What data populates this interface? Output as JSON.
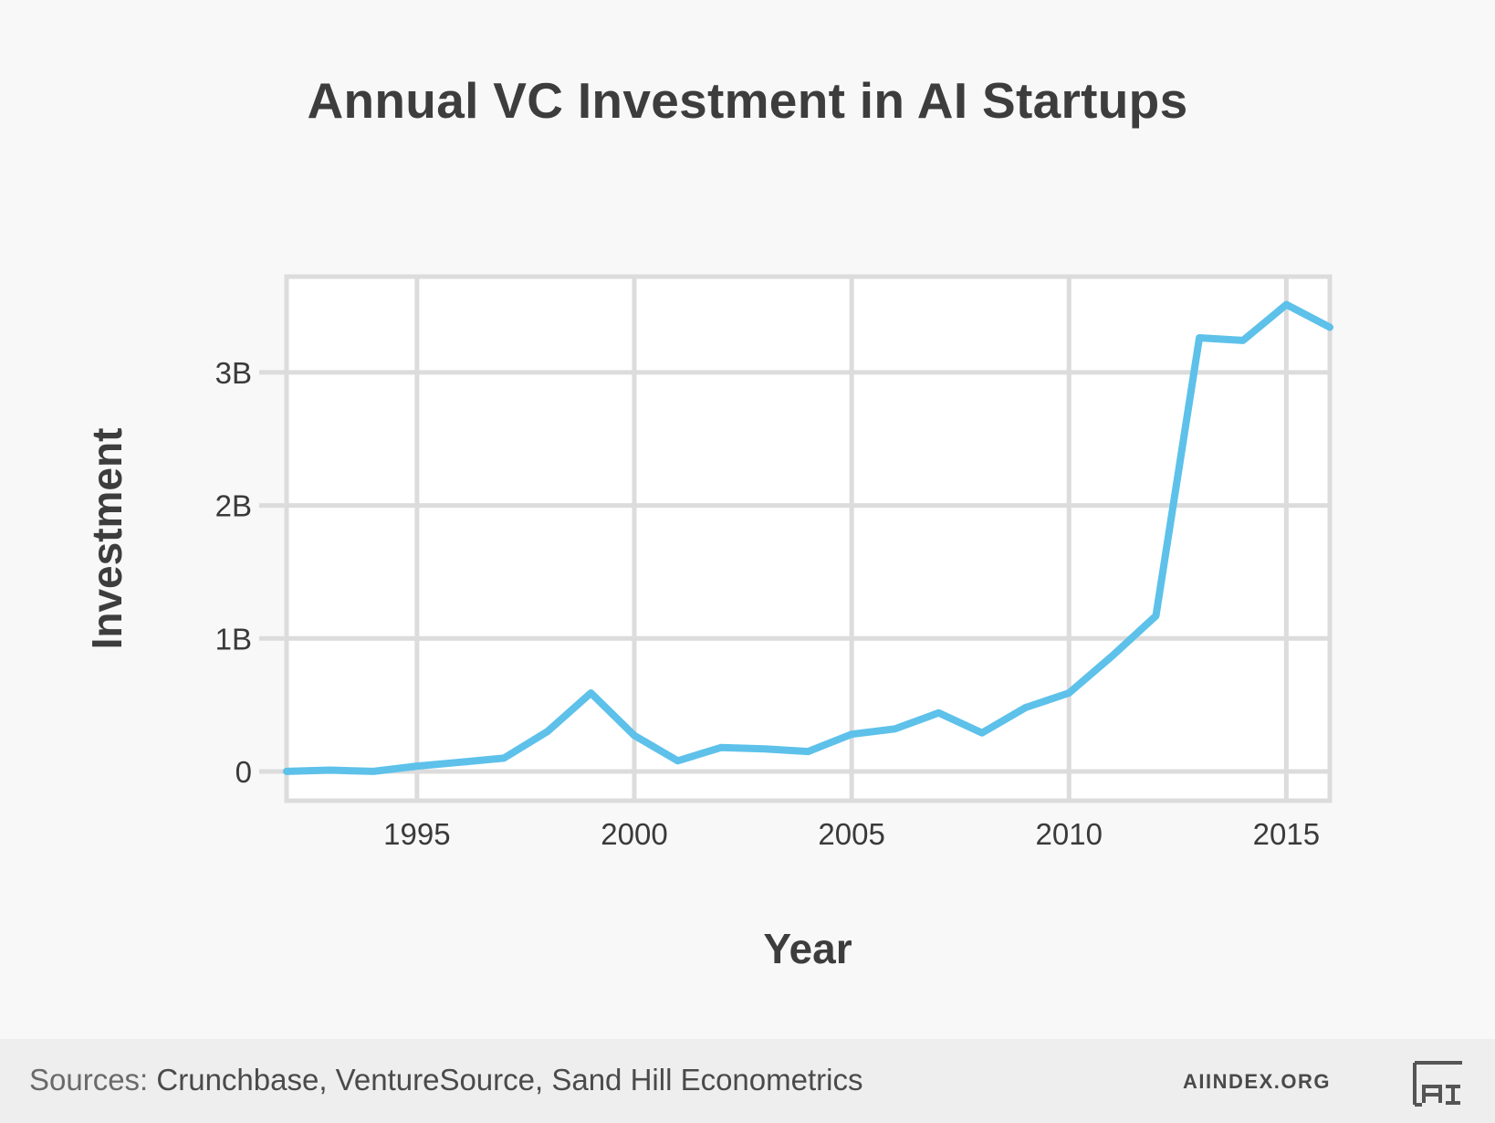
{
  "title": "Annual VC Investment in AI Startups",
  "footer": {
    "sources_prefix": "Sources:",
    "sources_list": "Crunchbase, VentureSource, Sand Hill Econometrics",
    "site": "AIINDEX.ORG",
    "logo_icon": "ai-index-logo-icon"
  },
  "colors": {
    "line": "#5dc1ea",
    "grid": "#dcdcdc",
    "background": "#f8f8f8",
    "plot_background": "#ffffff"
  },
  "chart_data": {
    "type": "line",
    "title": "Annual VC Investment in AI Startups",
    "xlabel": "Year",
    "ylabel": "Investment",
    "xlim": [
      1992,
      2016
    ],
    "ylim": [
      -0.22,
      3.72
    ],
    "x_ticks": [
      1995,
      2000,
      2005,
      2010,
      2015
    ],
    "x_tick_labels": [
      "1995",
      "2000",
      "2005",
      "2010",
      "2015"
    ],
    "y_ticks": [
      0,
      1,
      2,
      3
    ],
    "y_tick_labels": [
      "0",
      "1B",
      "2B",
      "3B"
    ],
    "grid": true,
    "legend": "none",
    "series": [
      {
        "x": [
          1992,
          1993,
          1994,
          1995,
          1996,
          1997,
          1998,
          1999,
          2000,
          2001,
          2002,
          2003,
          2004,
          2005,
          2006,
          2007,
          2008,
          2009,
          2010,
          2011,
          2012,
          2013,
          2014,
          2015,
          2016
        ],
        "values": [
          0.0,
          0.01,
          0.0,
          0.04,
          0.07,
          0.1,
          0.3,
          0.59,
          0.27,
          0.08,
          0.18,
          0.17,
          0.15,
          0.28,
          0.32,
          0.44,
          0.29,
          0.48,
          0.59,
          0.87,
          1.17,
          3.26,
          3.24,
          3.51,
          3.34
        ]
      }
    ]
  }
}
